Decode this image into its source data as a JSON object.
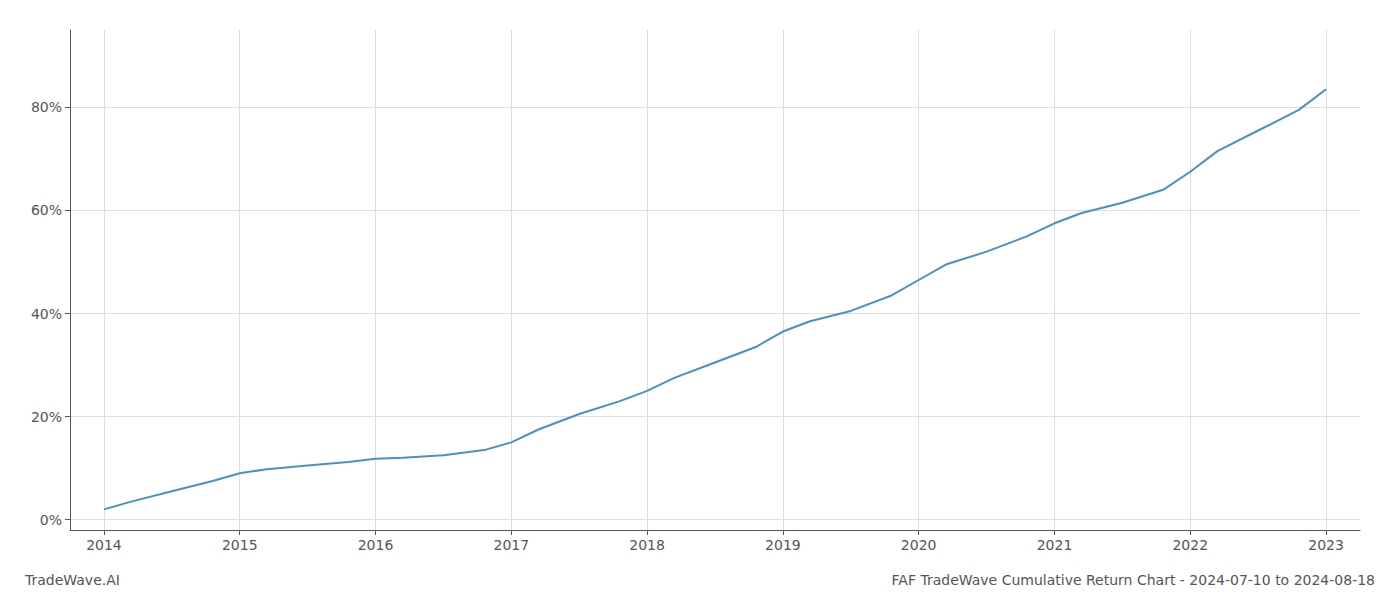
{
  "chart_data": {
    "type": "line",
    "title": "FAF TradeWave Cumulative Return Chart - 2024-07-10 to 2024-08-18",
    "annotations": [
      "TradeWave.AI"
    ],
    "x": [
      2014.0,
      2014.2,
      2014.5,
      2014.8,
      2015.0,
      2015.2,
      2015.5,
      2015.8,
      2016.0,
      2016.2,
      2016.5,
      2016.8,
      2017.0,
      2017.2,
      2017.5,
      2017.8,
      2018.0,
      2018.2,
      2018.5,
      2018.8,
      2019.0,
      2019.2,
      2019.5,
      2019.8,
      2020.0,
      2020.2,
      2020.5,
      2020.8,
      2021.0,
      2021.2,
      2021.5,
      2021.8,
      2022.0,
      2022.2,
      2022.5,
      2022.8,
      2023.0
    ],
    "values": [
      2.0,
      3.5,
      5.5,
      7.5,
      9.0,
      9.8,
      10.5,
      11.2,
      11.8,
      12.0,
      12.5,
      13.5,
      15.0,
      17.5,
      20.5,
      23.0,
      25.0,
      27.5,
      30.5,
      33.5,
      36.5,
      38.5,
      40.5,
      43.5,
      46.5,
      49.5,
      52.0,
      55.0,
      57.5,
      59.5,
      61.5,
      64.0,
      67.5,
      71.5,
      75.5,
      79.5,
      83.5
    ],
    "color": "#4a90c4",
    "xlim": [
      2013.75,
      2023.25
    ],
    "xticks": [
      2014,
      2015,
      2016,
      2017,
      2018,
      2019,
      2020,
      2021,
      2022,
      2023
    ],
    "ylim": [
      -2,
      95
    ],
    "yticks": [
      {
        "value": 0,
        "label": "0%"
      },
      {
        "value": 20,
        "label": "20%"
      },
      {
        "value": 40,
        "label": "40%"
      },
      {
        "value": 60,
        "label": "60%"
      },
      {
        "value": 80,
        "label": "80%"
      }
    ],
    "grid": true
  }
}
